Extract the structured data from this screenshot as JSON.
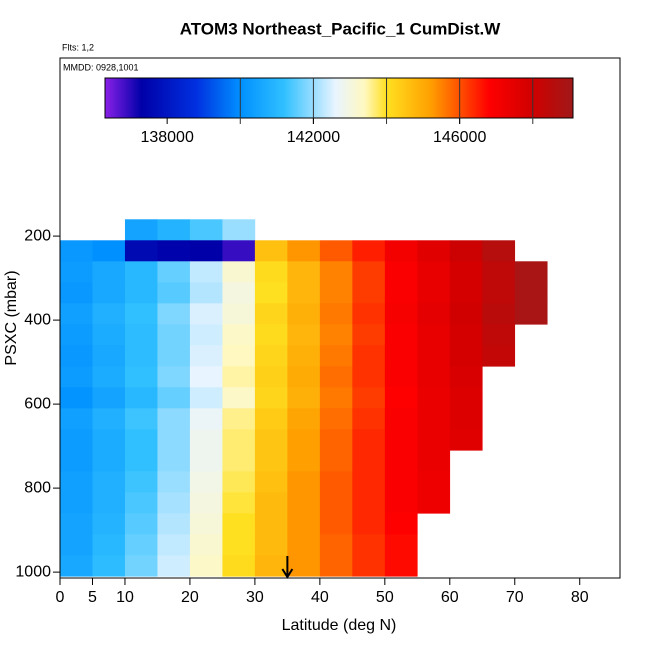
{
  "chart_data": {
    "type": "heatmap",
    "title": "ATOM3 Northeast_Pacific_1 CumDist.W",
    "annotations": [
      "Flts: 1,2",
      "MMDD: 0928,1001"
    ],
    "xlabel": "Latitude (deg N)",
    "ylabel": "PSXC (mbar)",
    "xlim": [
      0,
      86.2
    ],
    "xticks": [
      0,
      5,
      10,
      20,
      30,
      40,
      50,
      60,
      70,
      80
    ],
    "ylim": [
      1014,
      -224
    ],
    "yticks": [
      200,
      400,
      600,
      800,
      1000
    ],
    "xbins": [
      0,
      5,
      10,
      15,
      20,
      25,
      30,
      35,
      40,
      45,
      50,
      55,
      60,
      65,
      70,
      75
    ],
    "ybins": [
      160,
      210,
      260,
      310,
      360,
      410,
      460,
      510,
      560,
      610,
      660,
      710,
      760,
      810,
      860,
      910,
      960,
      1010
    ],
    "z": [
      [
        null,
        null,
        140500,
        140900,
        141400,
        142000,
        null,
        null,
        null,
        null,
        null,
        null,
        null,
        null,
        null
      ],
      [
        140200,
        140000,
        137600,
        137400,
        137300,
        136900,
        144600,
        145300,
        145900,
        146500,
        147100,
        147600,
        148100,
        148600,
        null
      ],
      [
        140300,
        140600,
        141000,
        141600,
        142300,
        143200,
        144100,
        144800,
        145500,
        146200,
        146900,
        147400,
        147900,
        148400,
        148900
      ],
      [
        140200,
        140600,
        141000,
        141500,
        142200,
        143000,
        144000,
        144800,
        145500,
        146200,
        146900,
        147400,
        147900,
        148400,
        148900
      ],
      [
        140400,
        140800,
        141200,
        141800,
        142500,
        143100,
        144200,
        144900,
        145600,
        146300,
        147000,
        147500,
        148000,
        148500,
        148900
      ],
      [
        140300,
        140700,
        141100,
        141700,
        142400,
        143300,
        144100,
        144800,
        145500,
        146200,
        146900,
        147400,
        147900,
        148400,
        null
      ],
      [
        140200,
        140600,
        141100,
        141700,
        142500,
        143400,
        144200,
        144900,
        145600,
        146300,
        146900,
        147400,
        147900,
        148300,
        null
      ],
      [
        140300,
        140700,
        141200,
        141800,
        142600,
        143500,
        144300,
        145000,
        145700,
        146300,
        146900,
        147400,
        147800,
        null,
        null
      ],
      [
        140100,
        140500,
        141000,
        141600,
        142400,
        143300,
        144200,
        144900,
        145600,
        146200,
        146800,
        147300,
        147700,
        null,
        null
      ],
      [
        140400,
        140800,
        141300,
        141900,
        142700,
        143600,
        144400,
        145100,
        145700,
        146300,
        146900,
        147300,
        147700,
        null,
        null
      ],
      [
        140300,
        140700,
        141200,
        141900,
        142800,
        143700,
        144500,
        145200,
        145800,
        146400,
        146900,
        147300,
        147600,
        null,
        null
      ],
      [
        140300,
        140700,
        141200,
        141900,
        142800,
        143700,
        144500,
        145200,
        145800,
        146400,
        146900,
        147300,
        null,
        null,
        null
      ],
      [
        140400,
        140800,
        141300,
        142000,
        142900,
        143800,
        144600,
        145300,
        145900,
        146400,
        146900,
        147200,
        null,
        null,
        null
      ],
      [
        140400,
        140800,
        141400,
        142100,
        143000,
        143900,
        144700,
        145300,
        145900,
        146400,
        146900,
        147200,
        null,
        null,
        null
      ],
      [
        140500,
        140900,
        141500,
        142200,
        143100,
        144000,
        144700,
        145300,
        145900,
        146400,
        146800,
        null,
        null,
        null,
        null
      ],
      [
        140500,
        141000,
        141600,
        142300,
        143200,
        144000,
        144700,
        145300,
        145800,
        146300,
        146700,
        null,
        null,
        null,
        null
      ],
      [
        140600,
        141100,
        141700,
        142400,
        143300,
        144100,
        144800,
        145300,
        145800,
        146300,
        146700,
        null,
        null,
        null,
        null
      ]
    ],
    "colorscale": [
      [
        136300,
        "#8a20e8"
      ],
      [
        137300,
        "#0000a8"
      ],
      [
        138800,
        "#0030e0"
      ],
      [
        140000,
        "#0090ff"
      ],
      [
        141200,
        "#30c0ff"
      ],
      [
        142600,
        "#e8f4ff"
      ],
      [
        143400,
        "#fff8c0"
      ],
      [
        144000,
        "#ffe020"
      ],
      [
        145200,
        "#ffa000"
      ],
      [
        146800,
        "#ff0000"
      ],
      [
        148000,
        "#d00000"
      ],
      [
        149100,
        "#a01818"
      ]
    ],
    "clim": [
      136300,
      149100
    ],
    "cticks": [
      138000,
      142000,
      146000
    ],
    "cbar_dividers": [
      140000,
      142000,
      144000,
      146000,
      148000
    ],
    "arrow_x": 35
  }
}
